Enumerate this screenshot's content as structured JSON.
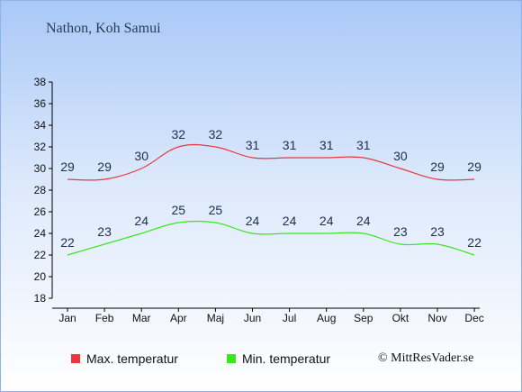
{
  "title": "Nathon, Koh Samui",
  "copyright": "© MittResVader.se",
  "colors": {
    "max": "#e8383b",
    "min": "#39e61f",
    "text": "#1c2f52"
  },
  "chart_data": {
    "type": "line",
    "title": "Nathon, Koh Samui",
    "xlabel": "",
    "ylabel": "",
    "categories": [
      "Jan",
      "Feb",
      "Mar",
      "Apr",
      "Maj",
      "Jun",
      "Jul",
      "Aug",
      "Sep",
      "Okt",
      "Nov",
      "Dec"
    ],
    "ylim": [
      18,
      38
    ],
    "yticks": [
      18,
      20,
      22,
      24,
      26,
      28,
      30,
      32,
      34,
      36,
      38
    ],
    "grid": false,
    "legend_position": "bottom-left",
    "series": [
      {
        "name": "Max. temperatur",
        "color": "#e8383b",
        "values": [
          29,
          29,
          30,
          32,
          32,
          31,
          31,
          31,
          31,
          30,
          29,
          29
        ]
      },
      {
        "name": "Min. temperatur",
        "color": "#39e61f",
        "values": [
          22,
          23,
          24,
          25,
          25,
          24,
          24,
          24,
          24,
          23,
          23,
          22
        ]
      }
    ]
  }
}
